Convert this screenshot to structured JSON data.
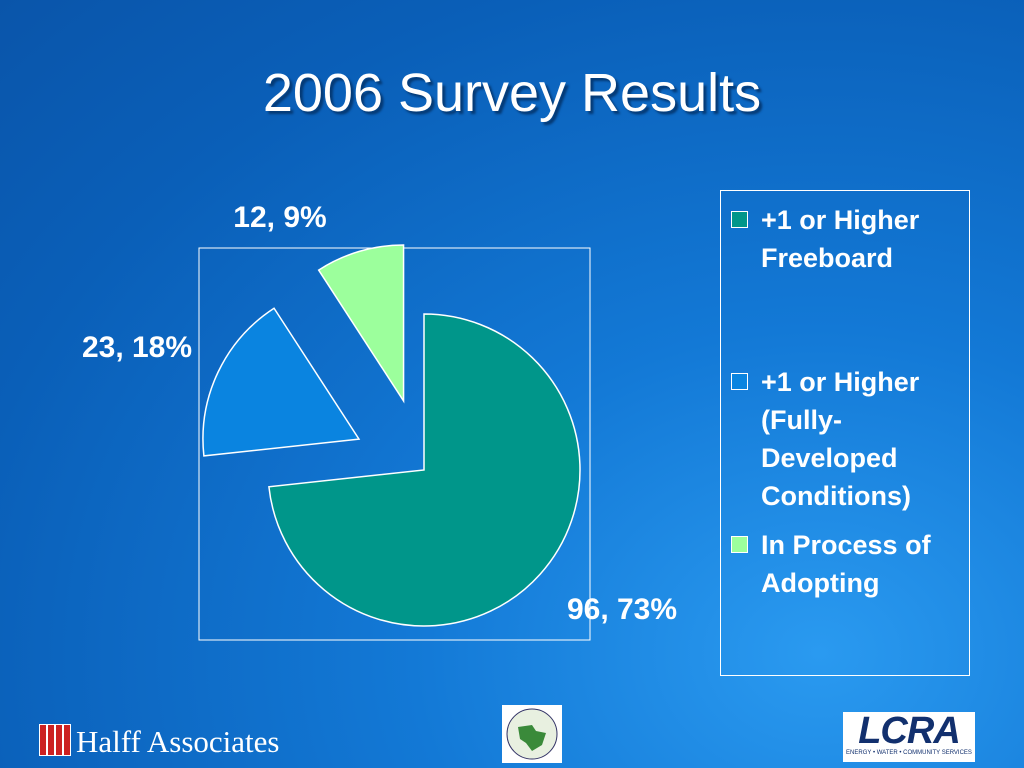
{
  "chart_data": {
    "type": "pie",
    "title": "2006 Survey Results",
    "categories": [
      "+1 or Higher Freeboard",
      "+1 or Higher (Fully-Developed Conditions)",
      "In Process of Adopting"
    ],
    "values": [
      96,
      23,
      12
    ],
    "value_labels": [
      "96, 73%",
      "23, 18%",
      "12, 9%"
    ],
    "colors": [
      "#00968a",
      "#0a84e0",
      "#9cff9c"
    ]
  },
  "footer": {
    "brand": "Halff Associates",
    "logo": "LCRA",
    "logo_tagline": "ENERGY • WATER • COMMUNITY SERVICES"
  }
}
